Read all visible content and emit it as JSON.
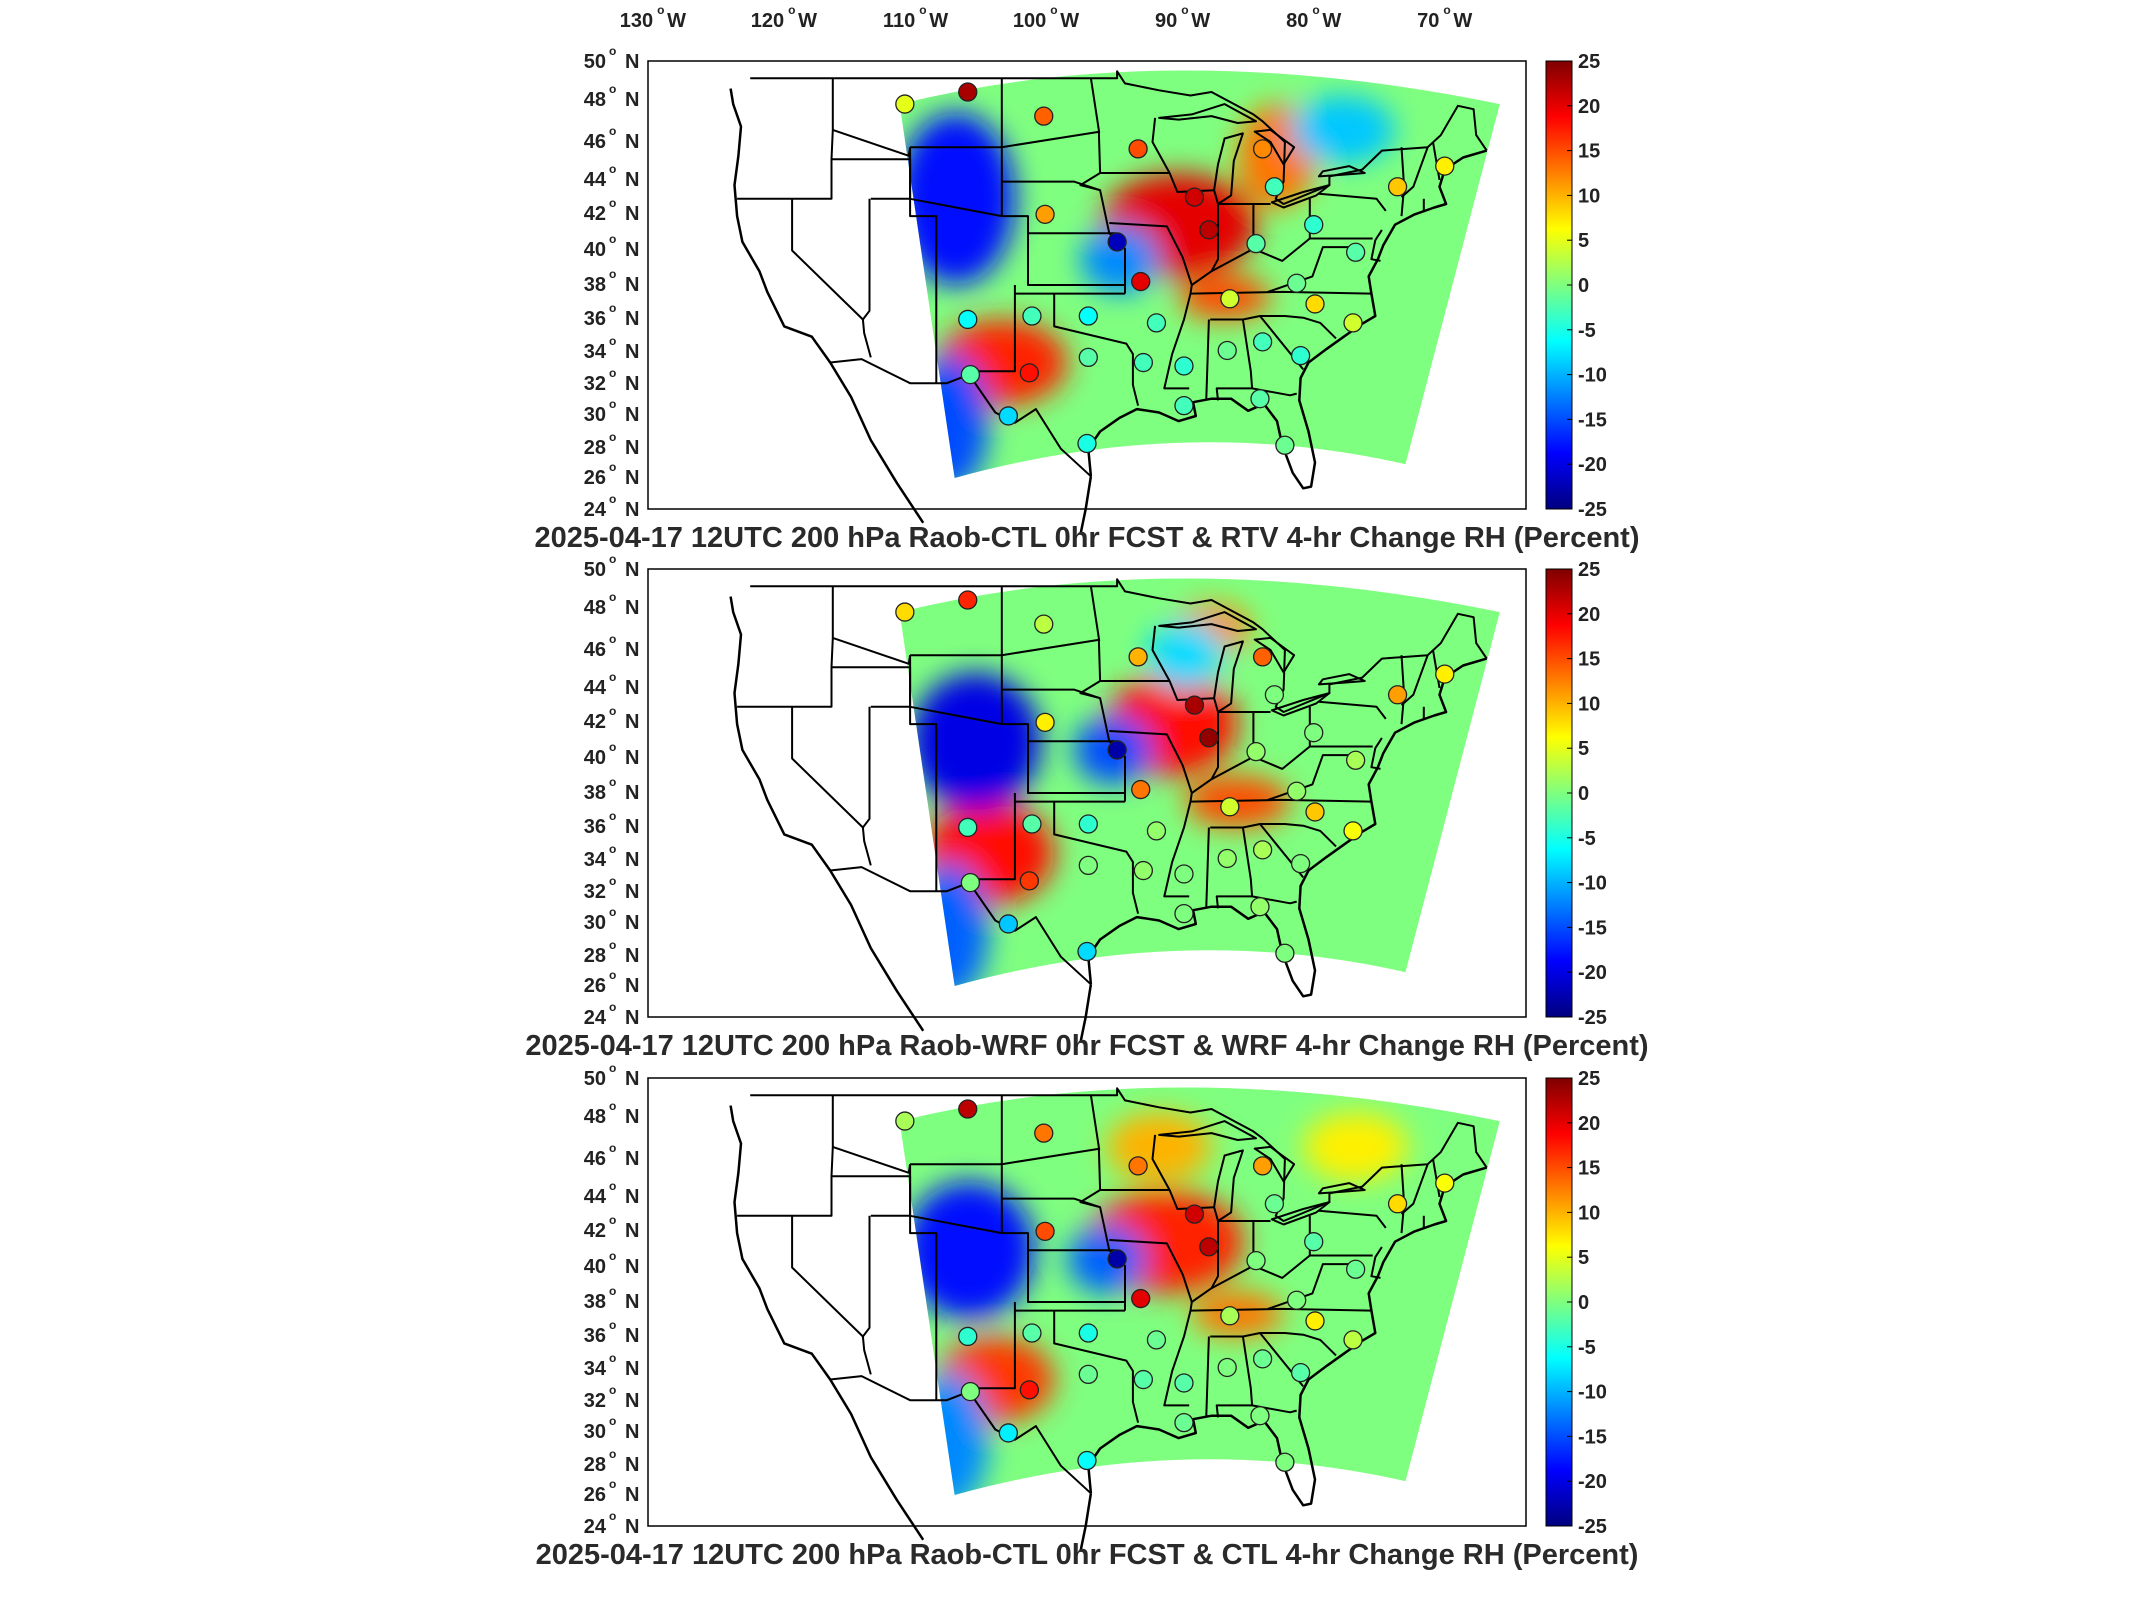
{
  "colors": {
    "colormap": [
      "#00007f",
      "#0000ff",
      "#007fff",
      "#00ffff",
      "#7fff7f",
      "#ffff00",
      "#ff7f00",
      "#ff0000",
      "#7f0000"
    ],
    "state_lines": "#000000",
    "station_outline": "#222222"
  },
  "lon_labels": [
    {
      "value": "130",
      "hemi": "W"
    },
    {
      "value": "120",
      "hemi": "W"
    },
    {
      "value": "110",
      "hemi": "W"
    },
    {
      "value": "100",
      "hemi": "W"
    },
    {
      "value": "90",
      "hemi": "W"
    },
    {
      "value": "80",
      "hemi": "W"
    },
    {
      "value": "70",
      "hemi": "W"
    }
  ],
  "lat_labels": [
    {
      "value": "50",
      "hemi": "N"
    },
    {
      "value": "48",
      "hemi": "N"
    },
    {
      "value": "46",
      "hemi": "N"
    },
    {
      "value": "44",
      "hemi": "N"
    },
    {
      "value": "42",
      "hemi": "N"
    },
    {
      "value": "40",
      "hemi": "N"
    },
    {
      "value": "38",
      "hemi": "N"
    },
    {
      "value": "36",
      "hemi": "N"
    },
    {
      "value": "34",
      "hemi": "N"
    },
    {
      "value": "32",
      "hemi": "N"
    },
    {
      "value": "30",
      "hemi": "N"
    },
    {
      "value": "28",
      "hemi": "N"
    },
    {
      "value": "26",
      "hemi": "N"
    },
    {
      "value": "24",
      "hemi": "N"
    }
  ],
  "colorbar": {
    "min": -25,
    "max": 25,
    "tick_labels": [
      "25",
      "20",
      "15",
      "10",
      "5",
      "0",
      "-5",
      "-10",
      "-15",
      "-20",
      "-25"
    ]
  },
  "panels": [
    {
      "title": "2025-04-17 12UTC 200 hPa Raob-CTL 0hr FCST & RTV 4-hr Change RH (Percent)",
      "field_blobs": [
        {
          "lon": -90.5,
          "lat": 40.5,
          "value": 20,
          "rx": 6,
          "ry": 3
        },
        {
          "lon": -104,
          "lat": 32.5,
          "value": 17,
          "rx": 5,
          "ry": 2.5
        },
        {
          "lon": -87,
          "lat": 36.3,
          "value": 15,
          "rx": 3.5,
          "ry": 1.3
        },
        {
          "lon": -83,
          "lat": 44.5,
          "value": 13,
          "rx": 3,
          "ry": 3
        },
        {
          "lon": -107.5,
          "lat": 42,
          "value": -18,
          "rx": 4.5,
          "ry": 5
        },
        {
          "lon": -95,
          "lat": 38.5,
          "value": -12,
          "rx": 3,
          "ry": 2
        },
        {
          "lon": -108,
          "lat": 29,
          "value": -15,
          "rx": 3,
          "ry": 4
        },
        {
          "lon": -78,
          "lat": 46,
          "value": -9,
          "rx": 4,
          "ry": 2
        }
      ],
      "stations": [
        {
          "lon": -111.4,
          "lat": 47.5,
          "value": 5
        },
        {
          "lon": -106.6,
          "lat": 48.2,
          "value": 23
        },
        {
          "lon": -100.8,
          "lat": 46.8,
          "value": 14
        },
        {
          "lon": -93.6,
          "lat": 44.9,
          "value": 15
        },
        {
          "lon": -84.1,
          "lat": 44.9,
          "value": 12
        },
        {
          "lon": -89.3,
          "lat": 42.1,
          "value": 21
        },
        {
          "lon": -88.2,
          "lat": 40.2,
          "value": 22
        },
        {
          "lon": -100.7,
          "lat": 41.1,
          "value": 11
        },
        {
          "lon": -95.2,
          "lat": 39.5,
          "value": -22
        },
        {
          "lon": -93.4,
          "lat": 37.2,
          "value": 20
        },
        {
          "lon": -86.6,
          "lat": 36.2,
          "value": 4
        },
        {
          "lon": -83.2,
          "lat": 42.7,
          "value": -3
        },
        {
          "lon": -84.6,
          "lat": 39.4,
          "value": -2
        },
        {
          "lon": -80.2,
          "lat": 40.5,
          "value": -4
        },
        {
          "lon": -81.5,
          "lat": 37.1,
          "value": -1
        },
        {
          "lon": -77.0,
          "lat": 38.9,
          "value": -2
        },
        {
          "lon": -73.8,
          "lat": 42.7,
          "value": 9
        },
        {
          "lon": -70.2,
          "lat": 43.9,
          "value": 7
        },
        {
          "lon": -80.1,
          "lat": 35.9,
          "value": 8
        },
        {
          "lon": -77.2,
          "lat": 34.8,
          "value": 4
        },
        {
          "lon": -81.2,
          "lat": 32.9,
          "value": -4
        },
        {
          "lon": -84.1,
          "lat": 33.7,
          "value": -3
        },
        {
          "lon": -86.8,
          "lat": 33.2,
          "value": -1
        },
        {
          "lon": -90.1,
          "lat": 32.3,
          "value": -4
        },
        {
          "lon": -92.2,
          "lat": 34.8,
          "value": -3
        },
        {
          "lon": -97.4,
          "lat": 35.2,
          "value": -6
        },
        {
          "lon": -101.7,
          "lat": 35.2,
          "value": -3
        },
        {
          "lon": -106.6,
          "lat": 35.0,
          "value": -6
        },
        {
          "lon": -97.4,
          "lat": 32.8,
          "value": -2
        },
        {
          "lon": -93.2,
          "lat": 32.5,
          "value": -3
        },
        {
          "lon": -101.9,
          "lat": 31.9,
          "value": 18
        },
        {
          "lon": -106.4,
          "lat": 31.8,
          "value": -2
        },
        {
          "lon": -103.5,
          "lat": 29.4,
          "value": -8
        },
        {
          "lon": -97.5,
          "lat": 27.8,
          "value": -5
        },
        {
          "lon": -82.4,
          "lat": 27.7,
          "value": -1
        },
        {
          "lon": -84.3,
          "lat": 30.4,
          "value": -2
        },
        {
          "lon": -90.1,
          "lat": 30.0,
          "value": -3
        }
      ]
    },
    {
      "title": "2025-04-17 12UTC 200 hPa Raob-WRF 0hr FCST & WRF 4-hr Change RH (Percent)",
      "field_blobs": [
        {
          "lon": -91,
          "lat": 41,
          "value": 18,
          "rx": 5,
          "ry": 3
        },
        {
          "lon": -105,
          "lat": 33.5,
          "value": 18,
          "rx": 5,
          "ry": 3
        },
        {
          "lon": -86,
          "lat": 36.5,
          "value": 15,
          "rx": 4,
          "ry": 1.5
        },
        {
          "lon": -88,
          "lat": 46.5,
          "value": 12,
          "rx": 3,
          "ry": 1.5
        },
        {
          "lon": -106,
          "lat": 40,
          "value": -20,
          "rx": 5,
          "ry": 4
        },
        {
          "lon": -95.5,
          "lat": 39.5,
          "value": -15,
          "rx": 3,
          "ry": 2
        },
        {
          "lon": -108,
          "lat": 29,
          "value": -14,
          "rx": 3,
          "ry": 4
        },
        {
          "lon": -90,
          "lat": 45,
          "value": -8,
          "rx": 3,
          "ry": 2
        }
      ],
      "stations": [
        {
          "lon": -111.4,
          "lat": 47.5,
          "value": 8
        },
        {
          "lon": -106.6,
          "lat": 48.2,
          "value": 17
        },
        {
          "lon": -100.8,
          "lat": 46.8,
          "value": 3
        },
        {
          "lon": -93.6,
          "lat": 44.9,
          "value": 10
        },
        {
          "lon": -84.1,
          "lat": 44.9,
          "value": 14
        },
        {
          "lon": -89.3,
          "lat": 42.1,
          "value": 23
        },
        {
          "lon": -88.2,
          "lat": 40.2,
          "value": 24
        },
        {
          "lon": -100.7,
          "lat": 41.1,
          "value": 7
        },
        {
          "lon": -95.2,
          "lat": 39.5,
          "value": -23
        },
        {
          "lon": -93.4,
          "lat": 37.2,
          "value": 13
        },
        {
          "lon": -86.6,
          "lat": 36.2,
          "value": 4
        },
        {
          "lon": -83.2,
          "lat": 42.7,
          "value": 0
        },
        {
          "lon": -84.6,
          "lat": 39.4,
          "value": 1
        },
        {
          "lon": -80.2,
          "lat": 40.5,
          "value": 0
        },
        {
          "lon": -81.5,
          "lat": 37.1,
          "value": 1
        },
        {
          "lon": -77.0,
          "lat": 38.9,
          "value": 2
        },
        {
          "lon": -73.8,
          "lat": 42.7,
          "value": 11
        },
        {
          "lon": -70.2,
          "lat": 43.9,
          "value": 7
        },
        {
          "lon": -80.1,
          "lat": 35.9,
          "value": 9
        },
        {
          "lon": -77.2,
          "lat": 34.8,
          "value": 6
        },
        {
          "lon": -81.2,
          "lat": 32.9,
          "value": 0
        },
        {
          "lon": -84.1,
          "lat": 33.7,
          "value": 2
        },
        {
          "lon": -86.8,
          "lat": 33.2,
          "value": 1
        },
        {
          "lon": -90.1,
          "lat": 32.3,
          "value": 0
        },
        {
          "lon": -92.2,
          "lat": 34.8,
          "value": 1
        },
        {
          "lon": -97.4,
          "lat": 35.2,
          "value": -4
        },
        {
          "lon": -101.7,
          "lat": 35.2,
          "value": -2
        },
        {
          "lon": -106.6,
          "lat": 35.0,
          "value": -3
        },
        {
          "lon": -97.4,
          "lat": 32.8,
          "value": 0
        },
        {
          "lon": -93.2,
          "lat": 32.5,
          "value": 1
        },
        {
          "lon": -101.9,
          "lat": 31.9,
          "value": 16
        },
        {
          "lon": -106.4,
          "lat": 31.8,
          "value": 0
        },
        {
          "lon": -103.5,
          "lat": 29.4,
          "value": -9
        },
        {
          "lon": -97.5,
          "lat": 27.8,
          "value": -8
        },
        {
          "lon": -82.4,
          "lat": 27.7,
          "value": 0
        },
        {
          "lon": -84.3,
          "lat": 30.4,
          "value": 1
        },
        {
          "lon": -90.1,
          "lat": 30.0,
          "value": 0
        }
      ]
    },
    {
      "title": "2025-04-17 12UTC 200 hPa Raob-CTL 0hr FCST & CTL 4-hr Change RH (Percent)",
      "field_blobs": [
        {
          "lon": -91.5,
          "lat": 40.5,
          "value": 17,
          "rx": 6,
          "ry": 3
        },
        {
          "lon": -104.5,
          "lat": 32.5,
          "value": 16,
          "rx": 4.5,
          "ry": 2.5
        },
        {
          "lon": -86,
          "lat": 36.3,
          "value": 13,
          "rx": 3.5,
          "ry": 1.3
        },
        {
          "lon": -92,
          "lat": 46,
          "value": 10,
          "rx": 4,
          "ry": 2
        },
        {
          "lon": -106.5,
          "lat": 40,
          "value": -18,
          "rx": 5,
          "ry": 4
        },
        {
          "lon": -96,
          "lat": 39.5,
          "value": -14,
          "rx": 3,
          "ry": 2
        },
        {
          "lon": -108,
          "lat": 29,
          "value": -12,
          "rx": 3,
          "ry": 4
        },
        {
          "lon": -77,
          "lat": 46,
          "value": 7,
          "rx": 4,
          "ry": 2
        }
      ],
      "stations": [
        {
          "lon": -111.4,
          "lat": 47.5,
          "value": 2
        },
        {
          "lon": -106.6,
          "lat": 48.2,
          "value": 22
        },
        {
          "lon": -100.8,
          "lat": 46.8,
          "value": 13
        },
        {
          "lon": -93.6,
          "lat": 44.9,
          "value": 13
        },
        {
          "lon": -84.1,
          "lat": 44.9,
          "value": 11
        },
        {
          "lon": -89.3,
          "lat": 42.1,
          "value": 21
        },
        {
          "lon": -88.2,
          "lat": 40.2,
          "value": 22
        },
        {
          "lon": -100.7,
          "lat": 41.1,
          "value": 15
        },
        {
          "lon": -95.2,
          "lat": 39.5,
          "value": -23
        },
        {
          "lon": -93.4,
          "lat": 37.2,
          "value": 20
        },
        {
          "lon": -86.6,
          "lat": 36.2,
          "value": 2
        },
        {
          "lon": -83.2,
          "lat": 42.7,
          "value": -1
        },
        {
          "lon": -84.6,
          "lat": 39.4,
          "value": 0
        },
        {
          "lon": -80.2,
          "lat": 40.5,
          "value": -2
        },
        {
          "lon": -81.5,
          "lat": 37.1,
          "value": 0
        },
        {
          "lon": -77.0,
          "lat": 38.9,
          "value": -1
        },
        {
          "lon": -73.8,
          "lat": 42.7,
          "value": 8
        },
        {
          "lon": -70.2,
          "lat": 43.9,
          "value": 6
        },
        {
          "lon": -80.1,
          "lat": 35.9,
          "value": 7
        },
        {
          "lon": -77.2,
          "lat": 34.8,
          "value": 3
        },
        {
          "lon": -81.2,
          "lat": 32.9,
          "value": -2
        },
        {
          "lon": -84.1,
          "lat": 33.7,
          "value": -1
        },
        {
          "lon": -86.8,
          "lat": 33.2,
          "value": 0
        },
        {
          "lon": -90.1,
          "lat": 32.3,
          "value": -2
        },
        {
          "lon": -92.2,
          "lat": 34.8,
          "value": -1
        },
        {
          "lon": -97.4,
          "lat": 35.2,
          "value": -5
        },
        {
          "lon": -101.7,
          "lat": 35.2,
          "value": -2
        },
        {
          "lon": -106.6,
          "lat": 35.0,
          "value": -4
        },
        {
          "lon": -97.4,
          "lat": 32.8,
          "value": -1
        },
        {
          "lon": -93.2,
          "lat": 32.5,
          "value": -2
        },
        {
          "lon": -101.9,
          "lat": 31.9,
          "value": 18
        },
        {
          "lon": -106.4,
          "lat": 31.8,
          "value": 0
        },
        {
          "lon": -103.5,
          "lat": 29.4,
          "value": -7
        },
        {
          "lon": -97.5,
          "lat": 27.8,
          "value": -6
        },
        {
          "lon": -82.4,
          "lat": 27.7,
          "value": 0
        },
        {
          "lon": -84.3,
          "lat": 30.4,
          "value": 0
        },
        {
          "lon": -90.1,
          "lat": 30.0,
          "value": -1
        }
      ]
    }
  ]
}
